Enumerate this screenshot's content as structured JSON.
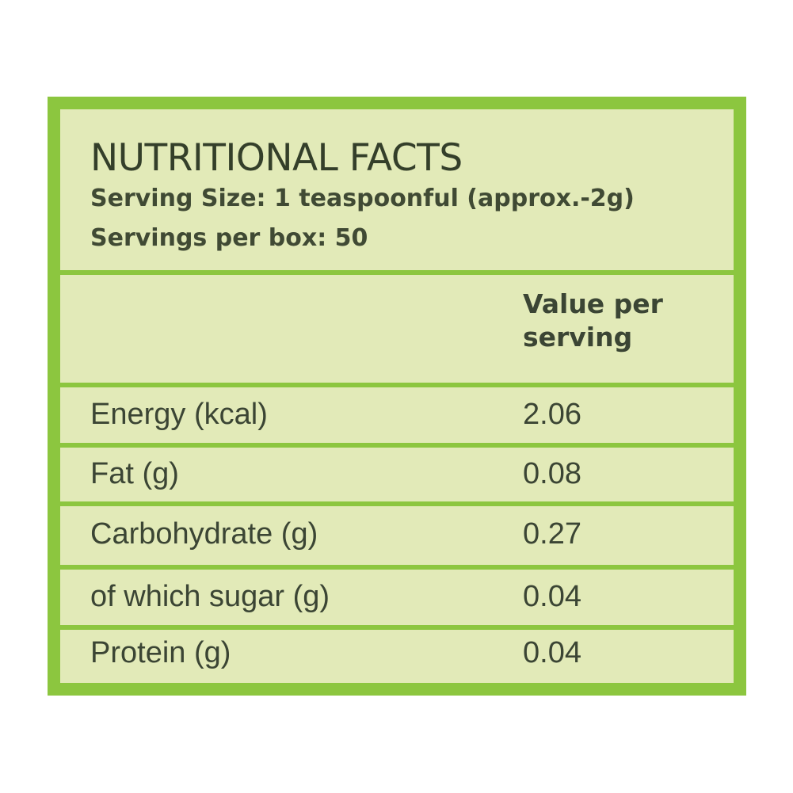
{
  "header": {
    "title": "NUTRITIONAL FACTS",
    "serving_size": "Serving Size: 1 teaspoonful (approx.-2g)",
    "servings_per_box": "Servings per box: 50"
  },
  "table": {
    "column_header": "Value per serving",
    "rows": [
      {
        "name": "Energy (kcal)",
        "value": "2.06"
      },
      {
        "name": "Fat (g)",
        "value": "0.08"
      },
      {
        "name": "Carbohydrate (g)",
        "value": "0.27"
      },
      {
        "name": "of which sugar (g)",
        "value": "0.04"
      },
      {
        "name": "Protein (g)",
        "value": "0.04"
      }
    ]
  },
  "colors": {
    "border_green": "#8cc63f",
    "panel_fill": "#e2eab8",
    "text": "#3b4534"
  }
}
